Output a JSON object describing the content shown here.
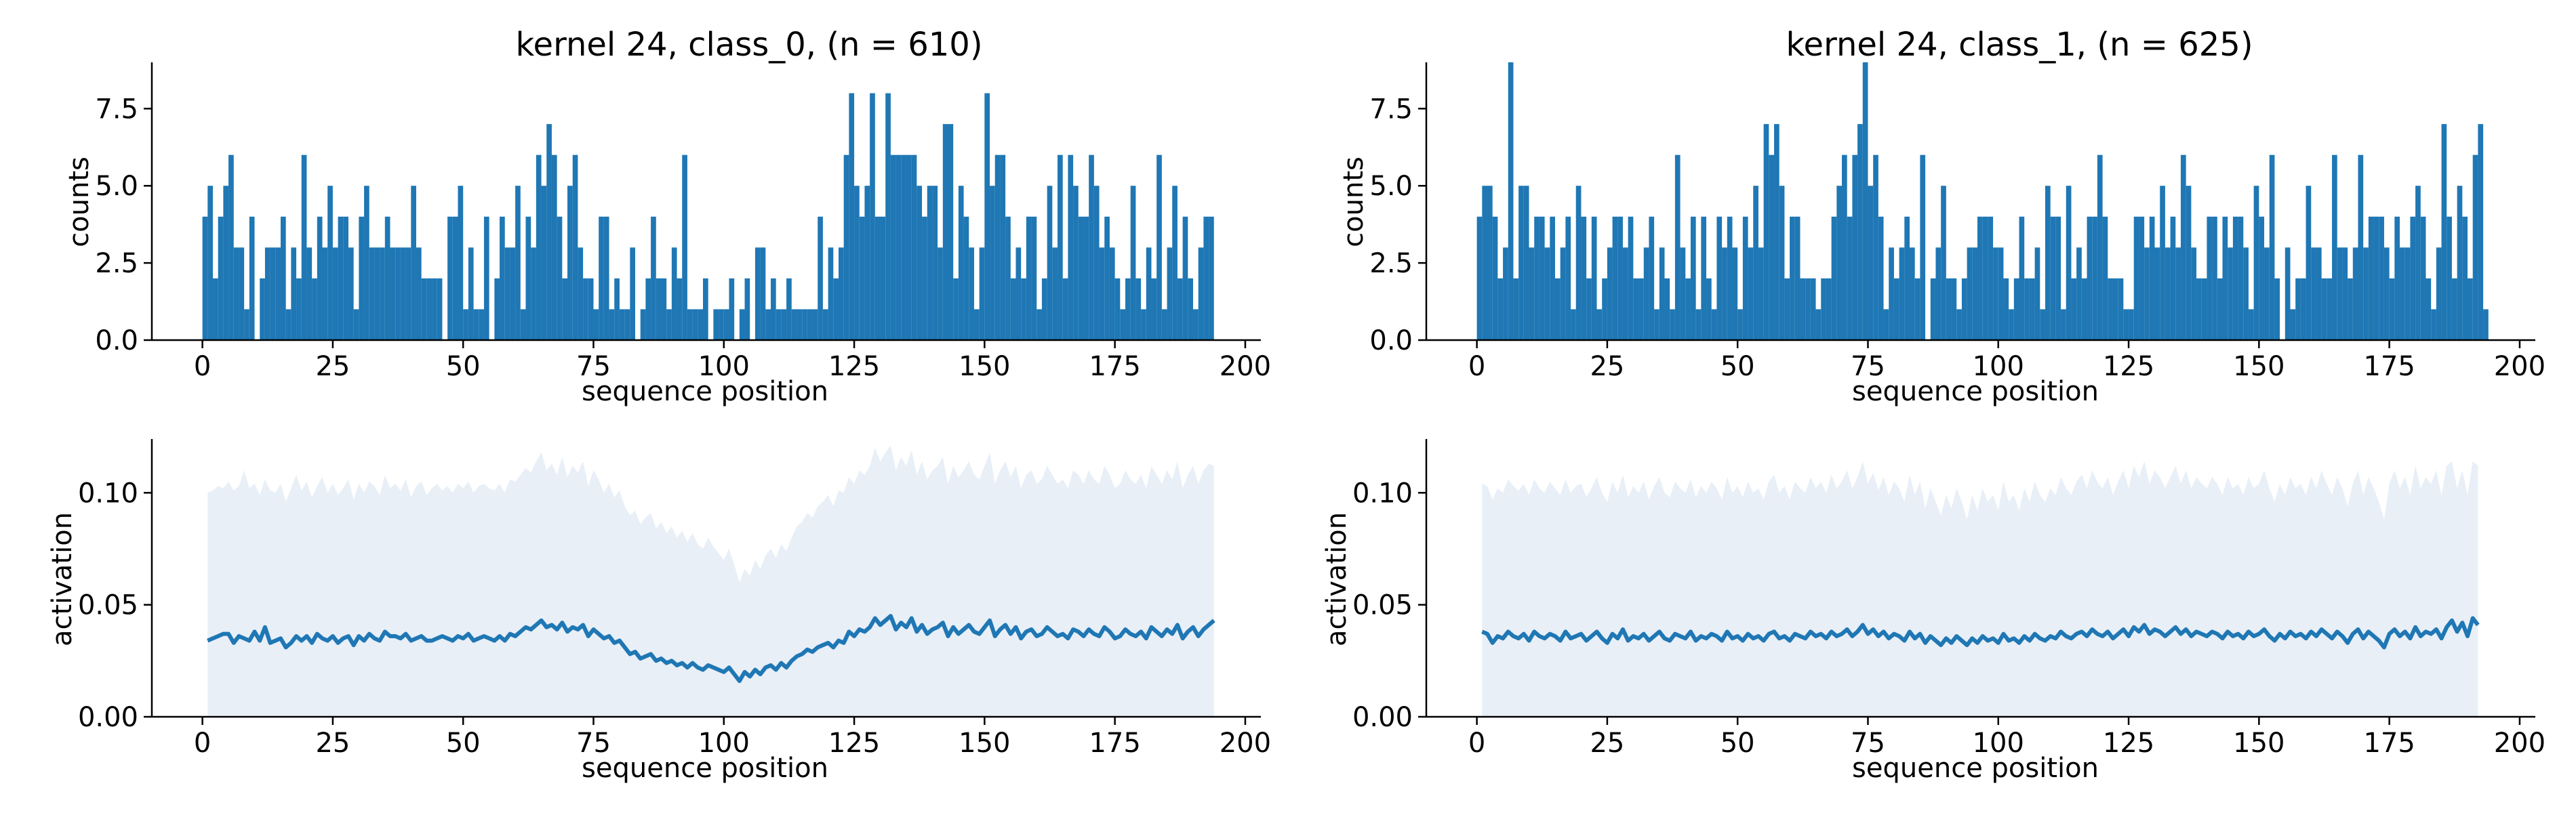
{
  "colors": {
    "bar": "#1f77b4",
    "line": "#1f77b4",
    "band": "#e8eff7",
    "axis": "#000000"
  },
  "chart_data": [
    {
      "type": "bar",
      "title": "kernel 24, class_0, (n = 610)",
      "xlabel": "sequence position",
      "ylabel": "counts",
      "xlim": [
        -9.7,
        203
      ],
      "ylim": [
        0,
        9
      ],
      "xticks": [
        "0",
        "25",
        "50",
        "75",
        "100",
        "125",
        "150",
        "175",
        "200"
      ],
      "yticks": [
        "0.0",
        "2.5",
        "5.0",
        "7.5"
      ],
      "x_start": 0,
      "values": [
        4,
        5,
        2,
        4,
        5,
        6,
        3,
        3,
        1,
        4,
        0,
        2,
        3,
        3,
        3,
        4,
        1,
        3,
        2,
        6,
        3,
        2,
        4,
        3,
        5,
        3,
        4,
        4,
        3,
        1,
        4,
        5,
        3,
        3,
        3,
        4,
        3,
        3,
        3,
        3,
        5,
        3,
        2,
        2,
        2,
        2,
        0,
        4,
        4,
        5,
        1,
        3,
        1,
        1,
        4,
        0,
        2,
        4,
        3,
        3,
        5,
        1,
        4,
        3,
        6,
        5,
        7,
        6,
        4,
        2,
        5,
        6,
        3,
        2,
        2,
        1,
        4,
        4,
        1,
        2,
        1,
        1,
        3,
        0,
        1,
        2,
        4,
        2,
        2,
        1,
        3,
        2,
        6,
        1,
        1,
        1,
        2,
        0,
        1,
        1,
        1,
        2,
        0,
        1,
        2,
        0,
        3,
        3,
        1,
        2,
        1,
        1,
        2,
        1,
        1,
        1,
        1,
        1,
        4,
        1,
        3,
        2,
        3,
        6,
        8,
        5,
        4,
        5,
        8,
        4,
        4,
        8,
        6,
        6,
        6,
        6,
        6,
        5,
        4,
        5,
        5,
        3,
        7,
        7,
        2,
        5,
        4,
        3,
        1,
        3,
        8,
        5,
        6,
        6,
        4,
        2,
        3,
        2,
        4,
        4,
        1,
        2,
        5,
        3,
        6,
        2,
        6,
        5,
        4,
        4,
        6,
        5,
        3,
        4,
        3,
        2,
        1,
        2,
        5,
        2,
        1,
        3,
        2,
        6,
        1,
        3,
        5,
        2,
        4,
        2,
        1,
        3,
        4,
        4
      ]
    },
    {
      "type": "bar",
      "title": "kernel 24, class_1, (n = 625)",
      "xlabel": "sequence position",
      "ylabel": "counts",
      "xlim": [
        -9.7,
        203
      ],
      "ylim": [
        0,
        9
      ],
      "xticks": [
        "0",
        "25",
        "50",
        "75",
        "100",
        "125",
        "150",
        "175",
        "200"
      ],
      "yticks": [
        "0.0",
        "2.5",
        "5.0",
        "7.5"
      ],
      "x_start": 0,
      "values": [
        4,
        5,
        5,
        4,
        2,
        3,
        9,
        2,
        5,
        5,
        3,
        4,
        4,
        3,
        4,
        2,
        3,
        4,
        1,
        5,
        4,
        2,
        4,
        1,
        2,
        3,
        4,
        4,
        3,
        4,
        2,
        2,
        3,
        4,
        1,
        3,
        2,
        1,
        6,
        3,
        2,
        4,
        1,
        4,
        2,
        1,
        4,
        3,
        4,
        3,
        1,
        4,
        3,
        5,
        3,
        7,
        6,
        7,
        5,
        2,
        4,
        4,
        2,
        2,
        2,
        1,
        2,
        2,
        4,
        5,
        6,
        4,
        6,
        7,
        9,
        5,
        6,
        4,
        1,
        3,
        2,
        3,
        4,
        3,
        2,
        6,
        0,
        2,
        3,
        5,
        2,
        2,
        1,
        2,
        3,
        3,
        4,
        4,
        4,
        3,
        3,
        2,
        1,
        2,
        4,
        2,
        2,
        3,
        1,
        5,
        4,
        4,
        1,
        5,
        2,
        3,
        2,
        4,
        4,
        6,
        4,
        2,
        2,
        2,
        1,
        1,
        4,
        4,
        3,
        4,
        3,
        5,
        3,
        4,
        3,
        6,
        5,
        3,
        2,
        2,
        4,
        4,
        2,
        4,
        3,
        4,
        4,
        3,
        1,
        5,
        4,
        3,
        6,
        2,
        0,
        3,
        1,
        2,
        2,
        5,
        3,
        3,
        2,
        2,
        6,
        3,
        3,
        2,
        3,
        6,
        3,
        4,
        4,
        4,
        3,
        2,
        4,
        3,
        3,
        4,
        5,
        4,
        2,
        1,
        3,
        7,
        4,
        2,
        5,
        4,
        2,
        6,
        7,
        1
      ]
    },
    {
      "type": "area",
      "xlabel": "sequence position",
      "ylabel": "activation",
      "xlim": [
        -9.7,
        203
      ],
      "ylim": [
        0,
        0.124
      ],
      "xticks": [
        "0",
        "25",
        "50",
        "75",
        "100",
        "125",
        "150",
        "175",
        "200"
      ],
      "yticks": [
        "0.00",
        "0.05",
        "0.10"
      ],
      "x_start": 1,
      "mean": [
        0.034,
        0.035,
        0.036,
        0.037,
        0.037,
        0.033,
        0.036,
        0.035,
        0.034,
        0.038,
        0.034,
        0.04,
        0.033,
        0.034,
        0.035,
        0.031,
        0.033,
        0.036,
        0.034,
        0.036,
        0.033,
        0.037,
        0.035,
        0.034,
        0.036,
        0.033,
        0.035,
        0.036,
        0.032,
        0.036,
        0.034,
        0.037,
        0.035,
        0.034,
        0.038,
        0.036,
        0.036,
        0.035,
        0.037,
        0.034,
        0.035,
        0.036,
        0.034,
        0.034,
        0.035,
        0.036,
        0.035,
        0.034,
        0.036,
        0.035,
        0.037,
        0.034,
        0.035,
        0.036,
        0.035,
        0.034,
        0.036,
        0.034,
        0.037,
        0.036,
        0.038,
        0.04,
        0.039,
        0.041,
        0.043,
        0.04,
        0.041,
        0.039,
        0.042,
        0.038,
        0.04,
        0.039,
        0.041,
        0.036,
        0.039,
        0.037,
        0.035,
        0.036,
        0.033,
        0.034,
        0.031,
        0.028,
        0.029,
        0.026,
        0.027,
        0.028,
        0.025,
        0.026,
        0.024,
        0.025,
        0.023,
        0.024,
        0.022,
        0.024,
        0.022,
        0.021,
        0.023,
        0.022,
        0.021,
        0.02,
        0.022,
        0.019,
        0.016,
        0.02,
        0.018,
        0.021,
        0.019,
        0.022,
        0.023,
        0.021,
        0.024,
        0.022,
        0.025,
        0.027,
        0.028,
        0.03,
        0.029,
        0.031,
        0.032,
        0.033,
        0.031,
        0.034,
        0.033,
        0.038,
        0.036,
        0.039,
        0.038,
        0.04,
        0.044,
        0.041,
        0.043,
        0.045,
        0.039,
        0.042,
        0.04,
        0.044,
        0.038,
        0.041,
        0.037,
        0.039,
        0.04,
        0.042,
        0.036,
        0.04,
        0.037,
        0.039,
        0.041,
        0.038,
        0.037,
        0.04,
        0.043,
        0.036,
        0.039,
        0.041,
        0.037,
        0.04,
        0.035,
        0.038,
        0.039,
        0.036,
        0.037,
        0.04,
        0.038,
        0.036,
        0.037,
        0.035,
        0.039,
        0.038,
        0.036,
        0.039,
        0.037,
        0.036,
        0.04,
        0.038,
        0.035,
        0.036,
        0.039,
        0.037,
        0.036,
        0.038,
        0.035,
        0.04,
        0.038,
        0.036,
        0.039,
        0.037,
        0.041,
        0.035,
        0.038,
        0.04,
        0.036,
        0.039,
        0.041,
        0.043
      ],
      "upper": [
        0.1,
        0.101,
        0.103,
        0.102,
        0.105,
        0.101,
        0.103,
        0.11,
        0.102,
        0.104,
        0.099,
        0.106,
        0.101,
        0.1,
        0.104,
        0.096,
        0.102,
        0.108,
        0.101,
        0.105,
        0.098,
        0.103,
        0.107,
        0.1,
        0.104,
        0.099,
        0.102,
        0.106,
        0.097,
        0.104,
        0.1,
        0.105,
        0.103,
        0.099,
        0.108,
        0.102,
        0.104,
        0.101,
        0.106,
        0.098,
        0.103,
        0.105,
        0.099,
        0.102,
        0.104,
        0.101,
        0.103,
        0.1,
        0.104,
        0.102,
        0.105,
        0.1,
        0.103,
        0.104,
        0.102,
        0.101,
        0.104,
        0.1,
        0.106,
        0.105,
        0.108,
        0.111,
        0.109,
        0.114,
        0.118,
        0.11,
        0.113,
        0.108,
        0.116,
        0.107,
        0.112,
        0.109,
        0.114,
        0.103,
        0.11,
        0.106,
        0.1,
        0.104,
        0.098,
        0.101,
        0.094,
        0.09,
        0.092,
        0.086,
        0.089,
        0.091,
        0.084,
        0.087,
        0.082,
        0.085,
        0.08,
        0.083,
        0.078,
        0.082,
        0.077,
        0.075,
        0.08,
        0.076,
        0.073,
        0.07,
        0.075,
        0.068,
        0.06,
        0.066,
        0.063,
        0.07,
        0.066,
        0.072,
        0.075,
        0.071,
        0.077,
        0.074,
        0.08,
        0.085,
        0.087,
        0.091,
        0.089,
        0.094,
        0.096,
        0.099,
        0.094,
        0.101,
        0.1,
        0.107,
        0.104,
        0.11,
        0.108,
        0.112,
        0.12,
        0.114,
        0.118,
        0.121,
        0.11,
        0.116,
        0.112,
        0.119,
        0.108,
        0.114,
        0.106,
        0.11,
        0.112,
        0.116,
        0.104,
        0.112,
        0.107,
        0.11,
        0.114,
        0.108,
        0.106,
        0.112,
        0.118,
        0.104,
        0.11,
        0.114,
        0.107,
        0.112,
        0.102,
        0.108,
        0.11,
        0.104,
        0.106,
        0.112,
        0.108,
        0.104,
        0.106,
        0.102,
        0.11,
        0.108,
        0.104,
        0.11,
        0.106,
        0.104,
        0.112,
        0.108,
        0.102,
        0.104,
        0.11,
        0.106,
        0.104,
        0.108,
        0.102,
        0.112,
        0.108,
        0.104,
        0.11,
        0.106,
        0.114,
        0.102,
        0.108,
        0.112,
        0.104,
        0.11,
        0.113,
        0.112
      ]
    },
    {
      "type": "area",
      "xlabel": "sequence position",
      "ylabel": "activation",
      "xlim": [
        -9.7,
        203
      ],
      "ylim": [
        0,
        0.124
      ],
      "xticks": [
        "0",
        "25",
        "50",
        "75",
        "100",
        "125",
        "150",
        "175",
        "200"
      ],
      "yticks": [
        "0.00",
        "0.05",
        "0.10"
      ],
      "x_start": 1,
      "mean": [
        0.038,
        0.037,
        0.033,
        0.036,
        0.035,
        0.038,
        0.036,
        0.035,
        0.037,
        0.034,
        0.038,
        0.036,
        0.035,
        0.037,
        0.036,
        0.034,
        0.038,
        0.035,
        0.036,
        0.037,
        0.034,
        0.036,
        0.038,
        0.035,
        0.033,
        0.037,
        0.035,
        0.039,
        0.034,
        0.036,
        0.035,
        0.037,
        0.034,
        0.036,
        0.038,
        0.035,
        0.034,
        0.037,
        0.036,
        0.035,
        0.038,
        0.034,
        0.036,
        0.035,
        0.037,
        0.036,
        0.034,
        0.038,
        0.035,
        0.036,
        0.034,
        0.037,
        0.035,
        0.036,
        0.034,
        0.037,
        0.038,
        0.035,
        0.036,
        0.034,
        0.037,
        0.036,
        0.035,
        0.038,
        0.036,
        0.037,
        0.035,
        0.038,
        0.036,
        0.037,
        0.039,
        0.036,
        0.038,
        0.041,
        0.037,
        0.039,
        0.036,
        0.038,
        0.035,
        0.037,
        0.036,
        0.034,
        0.038,
        0.035,
        0.037,
        0.033,
        0.036,
        0.034,
        0.032,
        0.035,
        0.033,
        0.036,
        0.034,
        0.032,
        0.035,
        0.033,
        0.036,
        0.034,
        0.035,
        0.033,
        0.037,
        0.034,
        0.035,
        0.033,
        0.036,
        0.034,
        0.037,
        0.035,
        0.034,
        0.036,
        0.035,
        0.038,
        0.036,
        0.035,
        0.037,
        0.038,
        0.036,
        0.039,
        0.037,
        0.036,
        0.038,
        0.035,
        0.037,
        0.039,
        0.036,
        0.04,
        0.038,
        0.041,
        0.037,
        0.039,
        0.038,
        0.036,
        0.038,
        0.04,
        0.037,
        0.039,
        0.036,
        0.038,
        0.037,
        0.036,
        0.038,
        0.037,
        0.035,
        0.038,
        0.036,
        0.037,
        0.035,
        0.038,
        0.036,
        0.037,
        0.039,
        0.036,
        0.034,
        0.037,
        0.035,
        0.038,
        0.036,
        0.037,
        0.035,
        0.038,
        0.036,
        0.039,
        0.037,
        0.035,
        0.038,
        0.036,
        0.033,
        0.037,
        0.039,
        0.035,
        0.038,
        0.036,
        0.034,
        0.031,
        0.037,
        0.039,
        0.036,
        0.038,
        0.035,
        0.04,
        0.036,
        0.038,
        0.037,
        0.039,
        0.035,
        0.04,
        0.043,
        0.038,
        0.042,
        0.036,
        0.044,
        0.041
      ],
      "upper": [
        0.104,
        0.103,
        0.097,
        0.102,
        0.1,
        0.106,
        0.103,
        0.101,
        0.104,
        0.099,
        0.106,
        0.102,
        0.1,
        0.105,
        0.102,
        0.099,
        0.106,
        0.1,
        0.103,
        0.104,
        0.098,
        0.102,
        0.107,
        0.1,
        0.096,
        0.105,
        0.1,
        0.108,
        0.098,
        0.103,
        0.1,
        0.105,
        0.097,
        0.103,
        0.107,
        0.1,
        0.098,
        0.105,
        0.102,
        0.1,
        0.106,
        0.098,
        0.103,
        0.1,
        0.105,
        0.102,
        0.097,
        0.107,
        0.1,
        0.103,
        0.098,
        0.105,
        0.1,
        0.102,
        0.097,
        0.105,
        0.108,
        0.1,
        0.103,
        0.097,
        0.105,
        0.102,
        0.1,
        0.107,
        0.102,
        0.105,
        0.1,
        0.108,
        0.102,
        0.105,
        0.11,
        0.102,
        0.107,
        0.114,
        0.104,
        0.109,
        0.101,
        0.107,
        0.099,
        0.105,
        0.102,
        0.096,
        0.108,
        0.099,
        0.105,
        0.093,
        0.102,
        0.096,
        0.09,
        0.099,
        0.093,
        0.102,
        0.096,
        0.088,
        0.099,
        0.092,
        0.102,
        0.096,
        0.099,
        0.092,
        0.105,
        0.096,
        0.099,
        0.092,
        0.102,
        0.096,
        0.105,
        0.099,
        0.096,
        0.102,
        0.099,
        0.107,
        0.102,
        0.099,
        0.105,
        0.108,
        0.102,
        0.11,
        0.105,
        0.102,
        0.107,
        0.099,
        0.105,
        0.11,
        0.102,
        0.112,
        0.107,
        0.114,
        0.104,
        0.11,
        0.107,
        0.102,
        0.107,
        0.112,
        0.104,
        0.11,
        0.102,
        0.107,
        0.104,
        0.102,
        0.107,
        0.104,
        0.099,
        0.107,
        0.102,
        0.104,
        0.099,
        0.107,
        0.102,
        0.104,
        0.11,
        0.102,
        0.096,
        0.104,
        0.099,
        0.107,
        0.102,
        0.104,
        0.099,
        0.107,
        0.102,
        0.11,
        0.104,
        0.099,
        0.107,
        0.102,
        0.094,
        0.104,
        0.11,
        0.099,
        0.107,
        0.102,
        0.096,
        0.088,
        0.104,
        0.11,
        0.102,
        0.107,
        0.099,
        0.112,
        0.102,
        0.107,
        0.104,
        0.11,
        0.099,
        0.112,
        0.114,
        0.102,
        0.11,
        0.099,
        0.114,
        0.112
      ]
    }
  ]
}
